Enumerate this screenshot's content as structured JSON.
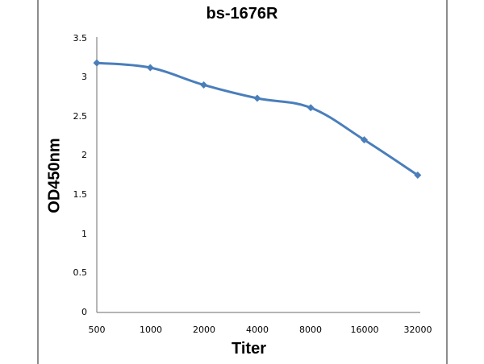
{
  "chart_data": {
    "type": "line",
    "title": "bs-1676R",
    "xlabel": "Titer",
    "ylabel": "OD450nm",
    "categories": [
      "500",
      "1000",
      "2000",
      "4000",
      "8000",
      "16000",
      "32000"
    ],
    "series": [
      {
        "name": "bs-1676R",
        "values": [
          3.18,
          3.12,
          2.9,
          2.73,
          2.61,
          2.2,
          1.75
        ],
        "color": "#4a7ebb",
        "marker": "diamond"
      }
    ],
    "ylim": [
      0,
      3.5
    ],
    "yticks": [
      "0",
      "0.5",
      "1",
      "1.5",
      "2",
      "2.5",
      "3",
      "3.5"
    ],
    "grid": false,
    "legend": "none"
  }
}
